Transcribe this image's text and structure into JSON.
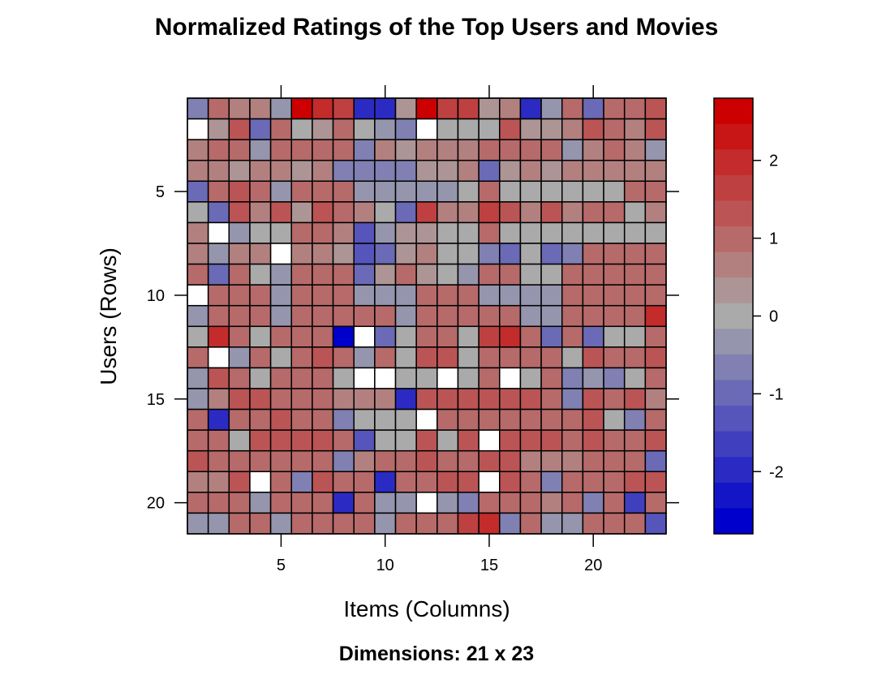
{
  "chart_data": {
    "type": "heatmap",
    "title": "Normalized Ratings of the Top Users and Movies",
    "xlabel": "Items (Columns)",
    "ylabel": "Users (Rows)",
    "subtitle": "Dimensions: 21 x 23",
    "nrows": 21,
    "ncols": 23,
    "x_ticks": [
      "5",
      "10",
      "15",
      "20"
    ],
    "y_ticks": [
      "5",
      "10",
      "15",
      "20"
    ],
    "colorbar": {
      "min": -2.8,
      "max": 2.8,
      "ticks": [
        "-2",
        "-1",
        "0",
        "1",
        "2"
      ],
      "low_color": "#0000cc",
      "mid_color": "#aaaaaa",
      "high_color": "#cc0000"
    },
    "missing_color": "#ffffff",
    "values": [
      [
        -0.6,
        0.9,
        0.6,
        0.6,
        -0.3,
        2.7,
        2.0,
        1.7,
        -2.0,
        -2.0,
        0.4,
        2.7,
        1.6,
        1.8,
        0.5,
        0.6,
        -2.0,
        -0.3,
        0.9,
        -1.1,
        1.0,
        1.0,
        1.5
      ],
      [
        null,
        0.5,
        1.4,
        -0.9,
        1.1,
        0.0,
        0.5,
        1.1,
        0.0,
        -0.4,
        -0.6,
        null,
        0.0,
        0.0,
        0.0,
        1.3,
        0.5,
        0.5,
        0.7,
        1.3,
        1.0,
        0.6,
        1.4
      ],
      [
        0.6,
        1.0,
        1.0,
        -0.4,
        1.0,
        0.9,
        1.0,
        1.0,
        -0.8,
        0.8,
        0.5,
        0.7,
        0.6,
        0.6,
        0.9,
        1.0,
        0.9,
        0.9,
        -0.3,
        0.6,
        0.9,
        0.6,
        -0.3
      ],
      [
        0.6,
        0.7,
        0.5,
        0.7,
        0.6,
        0.5,
        0.6,
        -0.7,
        -0.8,
        -0.7,
        -0.6,
        0.5,
        0.5,
        0.6,
        -0.9,
        0.5,
        0.6,
        0.5,
        0.6,
        0.6,
        0.6,
        0.6,
        0.6
      ],
      [
        -0.9,
        0.9,
        1.3,
        1.1,
        -0.3,
        1.2,
        1.1,
        1.1,
        -0.4,
        -0.3,
        -0.3,
        -0.3,
        -0.3,
        0.0,
        1.0,
        0.0,
        0.0,
        0.0,
        0.0,
        0.0,
        0.0,
        1.1,
        1.2
      ],
      [
        0.0,
        -0.9,
        1.5,
        0.6,
        1.5,
        0.5,
        1.5,
        1.0,
        0.6,
        0.0,
        -0.9,
        1.6,
        0.6,
        0.6,
        1.6,
        1.5,
        0.8,
        1.5,
        0.8,
        1.2,
        0.9,
        0.0,
        0.6
      ],
      [
        0.6,
        null,
        -0.3,
        0.0,
        0.0,
        1.0,
        1.1,
        0.7,
        -1.5,
        -0.3,
        0.5,
        0.5,
        0.0,
        0.0,
        1.2,
        0.0,
        0.0,
        0.0,
        0.0,
        0.0,
        0.0,
        0.0,
        0.0
      ],
      [
        0.6,
        -0.2,
        0.7,
        0.6,
        null,
        0.6,
        0.6,
        0.5,
        -1.3,
        -1.0,
        0.5,
        0.6,
        0.0,
        0.0,
        -0.8,
        -1.2,
        0.0,
        -1.2,
        -0.6,
        1.0,
        1.0,
        1.0,
        0.9
      ],
      [
        1.0,
        -1.1,
        1.0,
        0.0,
        -0.3,
        1.1,
        1.0,
        1.0,
        -1.1,
        0.5,
        1.1,
        0.5,
        0.0,
        -0.3,
        1.1,
        1.1,
        0.0,
        0.0,
        1.1,
        1.0,
        1.0,
        1.1,
        1.1
      ],
      [
        null,
        1.0,
        1.0,
        1.0,
        -0.3,
        1.1,
        1.0,
        1.0,
        -0.3,
        -0.3,
        -0.3,
        1.0,
        1.0,
        1.0,
        -0.3,
        -0.3,
        -0.3,
        -0.3,
        1.0,
        1.0,
        1.0,
        1.0,
        1.0
      ],
      [
        -0.3,
        1.0,
        1.0,
        1.1,
        -0.3,
        1.0,
        1.0,
        0.9,
        1.0,
        1.0,
        -0.3,
        1.0,
        1.0,
        1.0,
        0.9,
        0.9,
        -0.3,
        -0.3,
        0.9,
        1.0,
        1.0,
        1.0,
        2.0
      ],
      [
        0.0,
        2.0,
        1.0,
        0.0,
        1.0,
        1.0,
        1.0,
        -2.8,
        null,
        -1.1,
        0.0,
        1.0,
        1.0,
        0.0,
        1.9,
        2.0,
        1.0,
        -1.2,
        1.0,
        -1.1,
        0.0,
        0.0,
        1.0
      ],
      [
        1.0,
        null,
        -0.3,
        1.1,
        0.0,
        1.0,
        1.5,
        1.0,
        -0.3,
        1.0,
        0.0,
        1.5,
        1.5,
        0.0,
        1.0,
        1.0,
        1.0,
        1.0,
        0.0,
        1.5,
        1.0,
        1.0,
        1.5
      ],
      [
        -0.3,
        1.4,
        1.0,
        0.0,
        1.0,
        1.0,
        1.0,
        0.0,
        null,
        null,
        0.0,
        0.0,
        null,
        0.0,
        1.0,
        null,
        0.0,
        1.0,
        -0.8,
        -0.3,
        -0.6,
        0.0,
        1.0
      ],
      [
        -0.3,
        0.7,
        1.5,
        1.5,
        1.0,
        1.0,
        1.0,
        0.6,
        0.6,
        0.6,
        -2.0,
        1.5,
        1.5,
        1.5,
        1.5,
        1.5,
        1.5,
        1.0,
        -0.8,
        1.5,
        1.0,
        1.5,
        0.6
      ],
      [
        1.0,
        -2.0,
        1.0,
        1.0,
        1.5,
        1.0,
        1.0,
        -0.8,
        0.0,
        0.0,
        0.0,
        null,
        1.0,
        1.0,
        1.0,
        1.0,
        1.0,
        1.0,
        1.0,
        1.5,
        0.0,
        -0.8,
        1.0
      ],
      [
        1.0,
        1.0,
        0.0,
        1.5,
        1.5,
        1.5,
        1.5,
        1.0,
        -1.5,
        0.0,
        0.0,
        1.5,
        0.0,
        1.5,
        null,
        1.5,
        1.5,
        1.5,
        1.0,
        1.5,
        1.0,
        1.0,
        1.5
      ],
      [
        1.5,
        1.0,
        1.0,
        1.0,
        1.0,
        1.0,
        1.0,
        -0.8,
        0.6,
        1.0,
        1.0,
        1.5,
        1.0,
        1.0,
        1.5,
        1.5,
        0.6,
        0.6,
        0.6,
        1.0,
        1.0,
        1.0,
        -1.0
      ],
      [
        0.6,
        0.6,
        1.5,
        null,
        1.0,
        -0.8,
        1.5,
        1.0,
        1.0,
        -2.0,
        1.0,
        1.0,
        1.5,
        1.5,
        null,
        1.5,
        1.0,
        -0.8,
        1.0,
        1.0,
        1.0,
        1.5,
        1.5
      ],
      [
        1.0,
        1.0,
        1.0,
        -0.3,
        1.0,
        1.0,
        1.0,
        -2.0,
        1.0,
        -0.3,
        -0.3,
        null,
        -0.3,
        -0.8,
        1.0,
        1.0,
        1.0,
        0.6,
        1.0,
        -0.6,
        1.0,
        -1.6,
        1.0
      ],
      [
        -0.3,
        -0.3,
        1.0,
        1.0,
        -0.3,
        1.0,
        1.0,
        1.0,
        1.0,
        -0.3,
        1.0,
        1.0,
        1.0,
        1.6,
        2.0,
        -0.8,
        1.0,
        -0.3,
        -0.3,
        1.0,
        1.0,
        1.0,
        -1.5
      ]
    ]
  }
}
